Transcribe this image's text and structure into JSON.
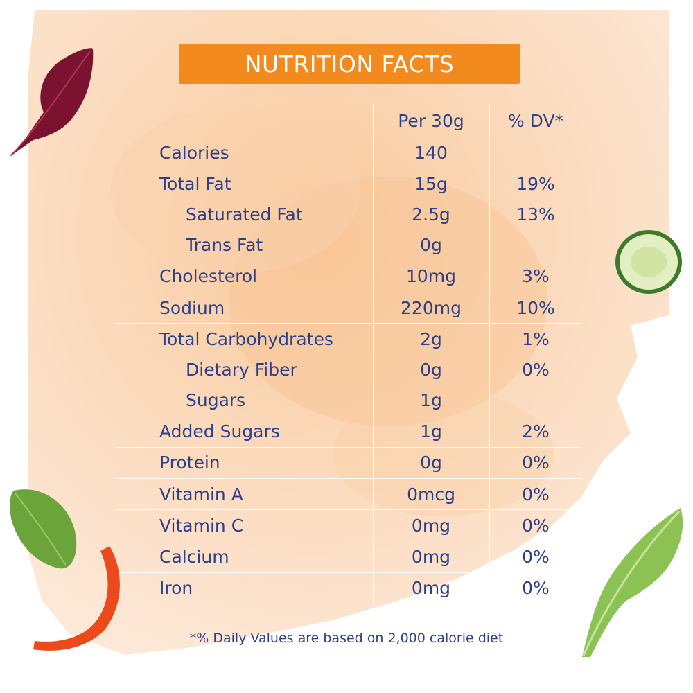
{
  "title": "NUTRITION FACTS",
  "columns": {
    "per": "Per 30g",
    "dv": "% DV*"
  },
  "rows": [
    {
      "label": "Calories",
      "per": "140",
      "dv": "",
      "indent": false,
      "sep": false
    },
    {
      "label": "Total Fat",
      "per": "15g",
      "dv": "19%",
      "indent": false,
      "sep": true
    },
    {
      "label": "Saturated Fat",
      "per": "2.5g",
      "dv": "13%",
      "indent": true,
      "sep": false
    },
    {
      "label": "Trans Fat",
      "per": "0g",
      "dv": "",
      "indent": true,
      "sep": false
    },
    {
      "label": "Cholesterol",
      "per": "10mg",
      "dv": "3%",
      "indent": false,
      "sep": true
    },
    {
      "label": "Sodium",
      "per": "220mg",
      "dv": "10%",
      "indent": false,
      "sep": true
    },
    {
      "label": "Total Carbohydrates",
      "per": "2g",
      "dv": "1%",
      "indent": false,
      "sep": true
    },
    {
      "label": "Dietary Fiber",
      "per": "0g",
      "dv": "0%",
      "indent": true,
      "sep": false
    },
    {
      "label": "Sugars",
      "per": "1g",
      "dv": "",
      "indent": true,
      "sep": false
    },
    {
      "label": "Added Sugars",
      "per": "1g",
      "dv": "2%",
      "indent": false,
      "sep": true
    },
    {
      "label": "Protein",
      "per": "0g",
      "dv": "0%",
      "indent": false,
      "sep": true
    },
    {
      "label": "Vitamin A",
      "per": "0mcg",
      "dv": "0%",
      "indent": false,
      "sep": true
    },
    {
      "label": "Vitamin C",
      "per": "0mg",
      "dv": "0%",
      "indent": false,
      "sep": true
    },
    {
      "label": "Calcium",
      "per": "0mg",
      "dv": "0%",
      "indent": false,
      "sep": true
    },
    {
      "label": "Iron",
      "per": "0mg",
      "dv": "0%",
      "indent": false,
      "sep": true
    }
  ],
  "footnote": "*% Daily Values are based on 2,000 calorie diet",
  "decorations": [
    "red-chard-leaf-icon",
    "cucumber-slice-icon",
    "basil-leaf-icon",
    "red-pepper-strip-icon",
    "lettuce-leaf-icon"
  ],
  "colors": {
    "accent": "#f28a1e",
    "text": "#2b3f8a",
    "wash": "#fbdcc0"
  }
}
